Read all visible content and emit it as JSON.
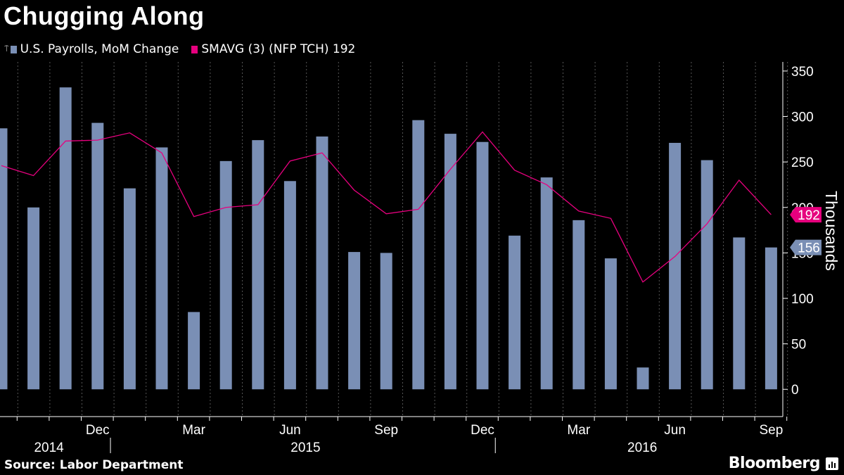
{
  "title": "Chugging Along",
  "legend": {
    "bars_label": "U.S. Payrolls, MoM Change",
    "line_label": "SMAVG (3) (NFP TCH) 192"
  },
  "colors": {
    "bar": "#7a8fb5",
    "line": "#e6007e",
    "axis": "#ffffff",
    "grid": "#555555"
  },
  "source": "Source: Labor Department",
  "brand": "Bloomberg",
  "chart_data": {
    "type": "bar",
    "title": "Chugging Along",
    "ylabel": "Thousands",
    "ylim": [
      -30,
      360
    ],
    "yticks": [
      0,
      50,
      100,
      150,
      200,
      250,
      300,
      350
    ],
    "months": [
      "Sep 2014",
      "Oct 2014",
      "Nov 2014",
      "Dec 2014",
      "Jan 2015",
      "Feb 2015",
      "Mar 2015",
      "Apr 2015",
      "May 2015",
      "Jun 2015",
      "Jul 2015",
      "Aug 2015",
      "Sep 2015",
      "Oct 2015",
      "Nov 2015",
      "Dec 2015",
      "Jan 2016",
      "Feb 2016",
      "Mar 2016",
      "Apr 2016",
      "May 2016",
      "Jun 2016",
      "Jul 2016",
      "Aug 2016",
      "Sep 2016"
    ],
    "x_tick_labels": [
      {
        "index": 3,
        "label": "Dec"
      },
      {
        "index": 6,
        "label": "Mar"
      },
      {
        "index": 9,
        "label": "Jun"
      },
      {
        "index": 12,
        "label": "Sep"
      },
      {
        "index": 15,
        "label": "Dec"
      },
      {
        "index": 18,
        "label": "Mar"
      },
      {
        "index": 21,
        "label": "Jun"
      },
      {
        "index": 24,
        "label": "Sep"
      }
    ],
    "year_labels": [
      {
        "index": 1,
        "label": "2014"
      },
      {
        "index": 9,
        "label": "2015"
      },
      {
        "index": 19.5,
        "label": "2016"
      }
    ],
    "year_dividers": [
      3.4,
      15.4
    ],
    "series": [
      {
        "name": "U.S. Payrolls, MoM Change",
        "type": "bar",
        "values": [
          287,
          200,
          332,
          293,
          221,
          266,
          85,
          251,
          274,
          229,
          278,
          151,
          150,
          296,
          281,
          272,
          169,
          233,
          186,
          144,
          24,
          271,
          252,
          167,
          156
        ]
      },
      {
        "name": "SMAVG (3) (NFP TCH)",
        "type": "line",
        "values": [
          246,
          235,
          273,
          274,
          282,
          260,
          190,
          200,
          203,
          251,
          260,
          219,
          193,
          198,
          242,
          283,
          241,
          225,
          196,
          188,
          118,
          146,
          182,
          230,
          192
        ]
      }
    ],
    "end_labels": [
      {
        "series": "SMAVG (3) (NFP TCH)",
        "value": 192,
        "label": "192"
      },
      {
        "series": "U.S. Payrolls, MoM Change",
        "value": 156,
        "label": "156"
      }
    ]
  }
}
